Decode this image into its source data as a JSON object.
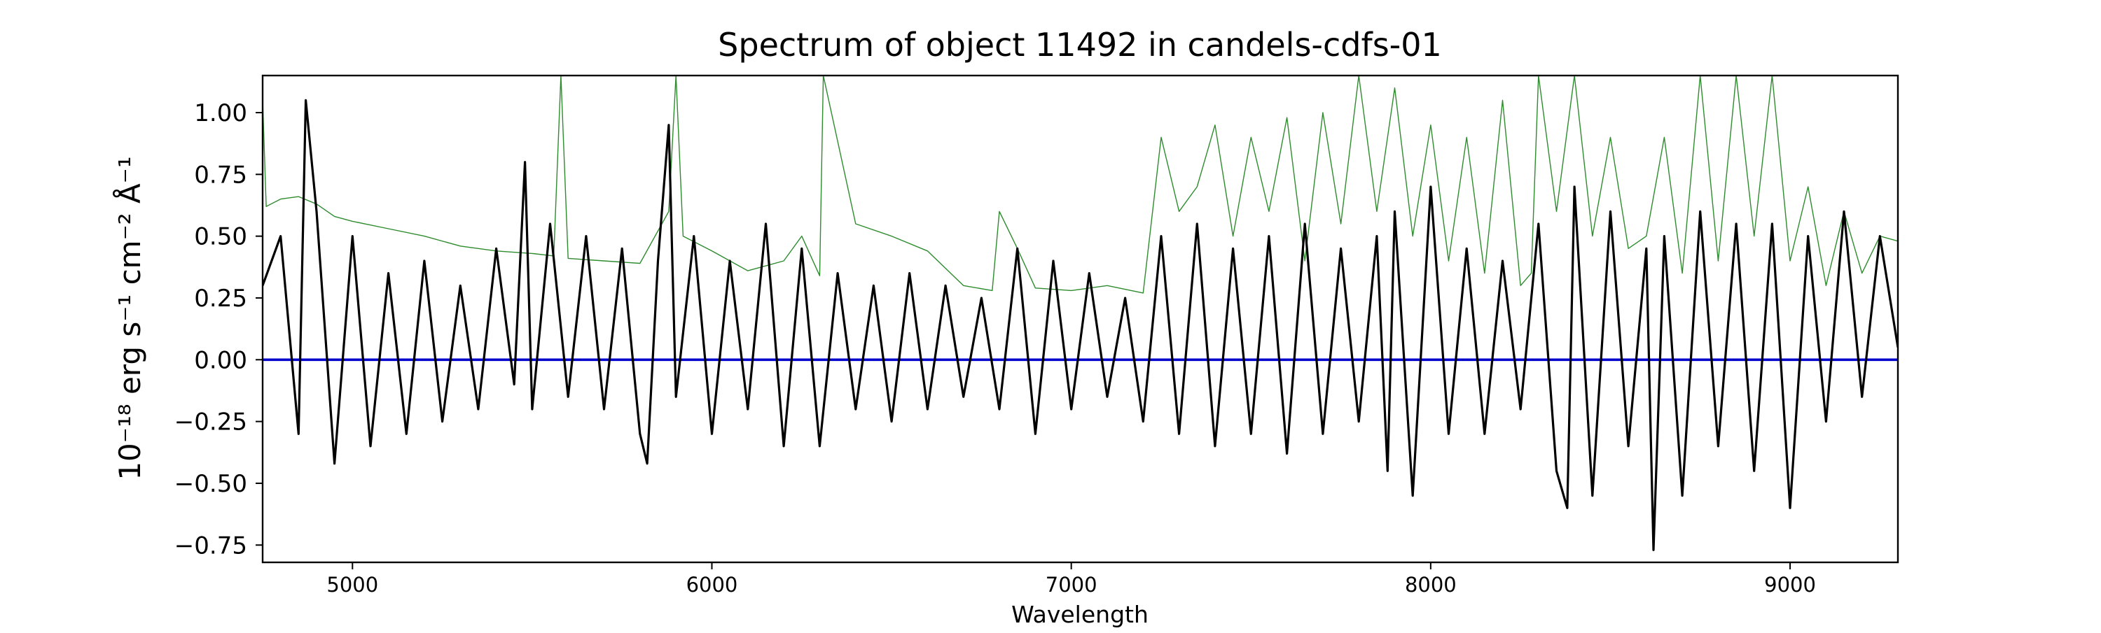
{
  "chart_data": {
    "type": "line",
    "title": "Spectrum of object 11492 in candels-cdfs-01",
    "xlabel": "Wavelength",
    "ylabel": "10⁻¹⁸ erg s⁻¹ cm⁻² Å⁻¹",
    "xlim": [
      4750,
      9300
    ],
    "ylim": [
      -0.82,
      1.15
    ],
    "grid": false,
    "x_ticks": [
      5000,
      6000,
      7000,
      8000,
      9000
    ],
    "x_tick_labels": [
      "5000",
      "6000",
      "7000",
      "8000",
      "9000"
    ],
    "y_ticks": [
      -0.75,
      -0.5,
      -0.25,
      0.0,
      0.25,
      0.5,
      0.75,
      1.0
    ],
    "y_tick_labels": [
      "−0.75",
      "−0.50",
      "−0.25",
      "0.00",
      "0.25",
      "0.50",
      "0.75",
      "1.00"
    ],
    "series": [
      {
        "role": "flux",
        "color": "#000000",
        "x": [
          4750,
          4800,
          4850,
          4870,
          4900,
          4950,
          5000,
          5050,
          5100,
          5150,
          5200,
          5250,
          5300,
          5350,
          5400,
          5450,
          5480,
          5500,
          5550,
          5600,
          5650,
          5700,
          5750,
          5800,
          5820,
          5850,
          5880,
          5900,
          5950,
          6000,
          6050,
          6100,
          6150,
          6200,
          6250,
          6300,
          6350,
          6400,
          6450,
          6500,
          6550,
          6600,
          6650,
          6700,
          6750,
          6800,
          6850,
          6900,
          6950,
          7000,
          7050,
          7100,
          7150,
          7200,
          7250,
          7300,
          7350,
          7400,
          7450,
          7500,
          7550,
          7600,
          7650,
          7700,
          7750,
          7800,
          7850,
          7880,
          7900,
          7950,
          8000,
          8050,
          8100,
          8150,
          8200,
          8250,
          8300,
          8350,
          8380,
          8400,
          8450,
          8500,
          8550,
          8600,
          8620,
          8650,
          8700,
          8750,
          8800,
          8850,
          8900,
          8950,
          9000,
          9050,
          9100,
          9150,
          9200,
          9250,
          9300
        ],
        "y": [
          0.3,
          0.5,
          -0.3,
          1.05,
          0.6,
          -0.42,
          0.5,
          -0.35,
          0.35,
          -0.3,
          0.4,
          -0.25,
          0.3,
          -0.2,
          0.45,
          -0.1,
          0.8,
          -0.2,
          0.55,
          -0.15,
          0.5,
          -0.2,
          0.45,
          -0.3,
          -0.42,
          0.4,
          0.95,
          -0.15,
          0.5,
          -0.3,
          0.4,
          -0.2,
          0.55,
          -0.35,
          0.45,
          -0.35,
          0.35,
          -0.2,
          0.3,
          -0.25,
          0.35,
          -0.2,
          0.3,
          -0.15,
          0.25,
          -0.2,
          0.45,
          -0.3,
          0.4,
          -0.2,
          0.35,
          -0.15,
          0.25,
          -0.25,
          0.5,
          -0.3,
          0.55,
          -0.35,
          0.45,
          -0.3,
          0.5,
          -0.38,
          0.55,
          -0.3,
          0.45,
          -0.25,
          0.5,
          -0.45,
          0.6,
          -0.55,
          0.7,
          -0.3,
          0.45,
          -0.3,
          0.4,
          -0.2,
          0.55,
          -0.45,
          -0.6,
          0.7,
          -0.55,
          0.6,
          -0.35,
          0.45,
          -0.77,
          0.5,
          -0.55,
          0.6,
          -0.35,
          0.55,
          -0.45,
          0.55,
          -0.6,
          0.5,
          -0.25,
          0.6,
          -0.15,
          0.5,
          0.05
        ]
      },
      {
        "role": "error",
        "color": "#2e8b2e",
        "x": [
          4750,
          4760,
          4800,
          4850,
          4900,
          4950,
          5000,
          5100,
          5200,
          5300,
          5400,
          5500,
          5560,
          5580,
          5600,
          5700,
          5800,
          5880,
          5900,
          5920,
          6000,
          6100,
          6200,
          6250,
          6300,
          6310,
          6400,
          6500,
          6600,
          6700,
          6780,
          6800,
          6850,
          6900,
          7000,
          7100,
          7200,
          7250,
          7300,
          7350,
          7400,
          7450,
          7500,
          7550,
          7600,
          7650,
          7700,
          7750,
          7800,
          7850,
          7900,
          7950,
          8000,
          8050,
          8100,
          8150,
          8200,
          8250,
          8280,
          8300,
          8350,
          8400,
          8450,
          8500,
          8550,
          8600,
          8650,
          8700,
          8750,
          8800,
          8850,
          8900,
          8950,
          9000,
          9050,
          9100,
          9150,
          9200,
          9250,
          9300
        ],
        "y": [
          1.05,
          0.62,
          0.65,
          0.66,
          0.63,
          0.58,
          0.56,
          0.53,
          0.5,
          0.46,
          0.44,
          0.43,
          0.42,
          1.15,
          0.41,
          0.4,
          0.39,
          0.6,
          1.15,
          0.5,
          0.44,
          0.36,
          0.4,
          0.5,
          0.34,
          1.15,
          0.55,
          0.5,
          0.44,
          0.3,
          0.28,
          0.6,
          0.45,
          0.29,
          0.28,
          0.3,
          0.27,
          0.9,
          0.6,
          0.7,
          0.95,
          0.5,
          0.9,
          0.6,
          0.98,
          0.4,
          1.0,
          0.55,
          1.15,
          0.6,
          1.1,
          0.5,
          0.95,
          0.4,
          0.9,
          0.35,
          1.05,
          0.3,
          0.35,
          1.15,
          0.6,
          1.15,
          0.5,
          0.9,
          0.45,
          0.5,
          0.9,
          0.35,
          1.15,
          0.4,
          1.15,
          0.5,
          1.15,
          0.4,
          0.7,
          0.3,
          0.6,
          0.35,
          0.5,
          0.48
        ]
      },
      {
        "role": "zero",
        "color": "#0000cc",
        "x": [
          4750,
          9300
        ],
        "y": [
          0,
          0
        ]
      }
    ]
  }
}
